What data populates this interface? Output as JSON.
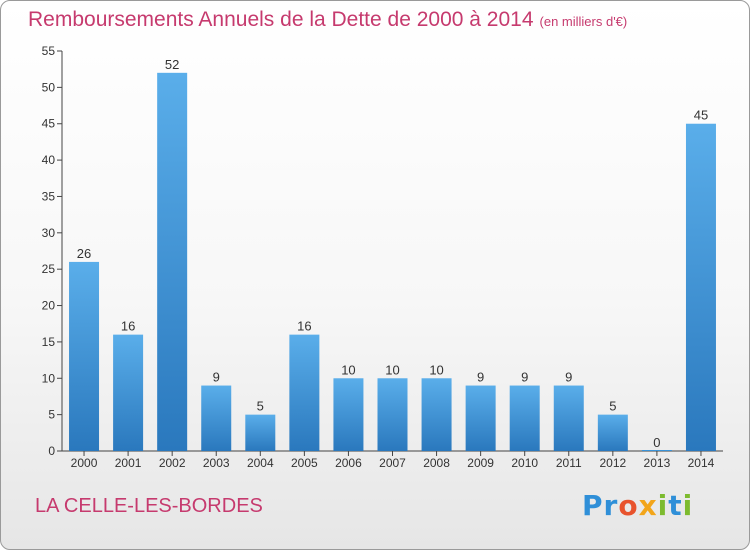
{
  "chart_data": {
    "type": "bar",
    "title": "Remboursements Annuels de la Dette de 2000 à 2014",
    "subtitle": "(en milliers d'€)",
    "categories": [
      "2000",
      "2001",
      "2002",
      "2003",
      "2004",
      "2005",
      "2006",
      "2007",
      "2008",
      "2009",
      "2010",
      "2011",
      "2012",
      "2013",
      "2014"
    ],
    "values": [
      26,
      16,
      52,
      9,
      5,
      16,
      10,
      10,
      10,
      9,
      9,
      9,
      5,
      0,
      45
    ],
    "ylim": [
      0,
      55
    ],
    "yticks": [
      0,
      5,
      10,
      15,
      20,
      25,
      30,
      35,
      40,
      45,
      50,
      55
    ],
    "grid": false,
    "bar_color": "#3a93d8"
  },
  "commune": "LA CELLE-LES-BORDES",
  "logo": {
    "text": "Proxiti",
    "colors": [
      "#2f8fd8",
      "#e8532d",
      "#f2a51a",
      "#7dbb2f"
    ]
  }
}
